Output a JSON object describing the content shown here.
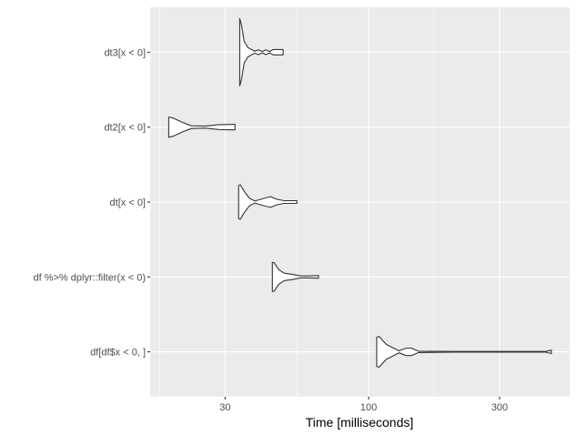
{
  "chart_data": {
    "type": "violin",
    "title": "",
    "xlabel": "Time [milliseconds]",
    "ylabel": "",
    "x_scale": "log10",
    "xlim": [
      16,
      540
    ],
    "x_ticks": [
      30,
      100,
      300
    ],
    "x_tick_labels": [
      "30",
      "100",
      "300"
    ],
    "x_minor_ticks": [
      17.3,
      54.8,
      173,
      548
    ],
    "grid": true,
    "colors": {
      "panel": "#ebebeb",
      "grid": "#ffffff",
      "violin_fill": "#ffffff",
      "violin_stroke": "#333333"
    },
    "categories": [
      "df[df$x < 0, ]",
      "df %>% dplyr::filter(x < 0)",
      "dt[x < 0]",
      "dt2[x < 0]",
      "dt3[x < 0]"
    ],
    "series": [
      {
        "category": "df[df$x < 0, ]",
        "profile": [
          [
            107,
            0.43
          ],
          [
            109,
            0.46
          ],
          [
            116,
            0.22
          ],
          [
            129,
            0.03
          ],
          [
            137,
            0.11
          ],
          [
            143,
            0.11
          ],
          [
            152,
            0.02
          ],
          [
            206,
            0.01
          ],
          [
            442,
            0.01
          ],
          [
            463,
            0.05
          ]
        ]
      },
      {
        "category": "df %>% dplyr::filter(x < 0)",
        "profile": [
          [
            44.6,
            0.43
          ],
          [
            45.2,
            0.43
          ],
          [
            47.0,
            0.22
          ],
          [
            49.2,
            0.11
          ],
          [
            52.3,
            0.08
          ],
          [
            56.5,
            0.03
          ],
          [
            60.9,
            0.03
          ],
          [
            65.7,
            0.04
          ]
        ]
      },
      {
        "category": "dt[x < 0]",
        "profile": [
          [
            33.6,
            0.49
          ],
          [
            34.1,
            0.51
          ],
          [
            35.2,
            0.32
          ],
          [
            36.8,
            0.11
          ],
          [
            38.5,
            0.03
          ],
          [
            41.6,
            0.11
          ],
          [
            43.9,
            0.16
          ],
          [
            46.3,
            0.08
          ],
          [
            49.2,
            0.04
          ],
          [
            54.8,
            0.04
          ]
        ]
      },
      {
        "category": "dt2[x < 0]",
        "profile": [
          [
            18.7,
            0.3
          ],
          [
            19.4,
            0.27
          ],
          [
            21.0,
            0.14
          ],
          [
            22.6,
            0.04
          ],
          [
            25.4,
            0.03
          ],
          [
            28.4,
            0.07
          ],
          [
            31.9,
            0.08
          ],
          [
            32.6,
            0.08
          ]
        ]
      },
      {
        "category": "dt3[x < 0]",
        "profile": [
          [
            33.9,
            1.0
          ],
          [
            34.4,
            0.81
          ],
          [
            35.2,
            0.32
          ],
          [
            36.3,
            0.14
          ],
          [
            37.4,
            0.08
          ],
          [
            38.5,
            0.03
          ],
          [
            39.7,
            0.07
          ],
          [
            41.0,
            0.02
          ],
          [
            42.2,
            0.07
          ],
          [
            43.6,
            0.02
          ],
          [
            44.9,
            0.08
          ],
          [
            48.8,
            0.08
          ]
        ]
      }
    ]
  }
}
